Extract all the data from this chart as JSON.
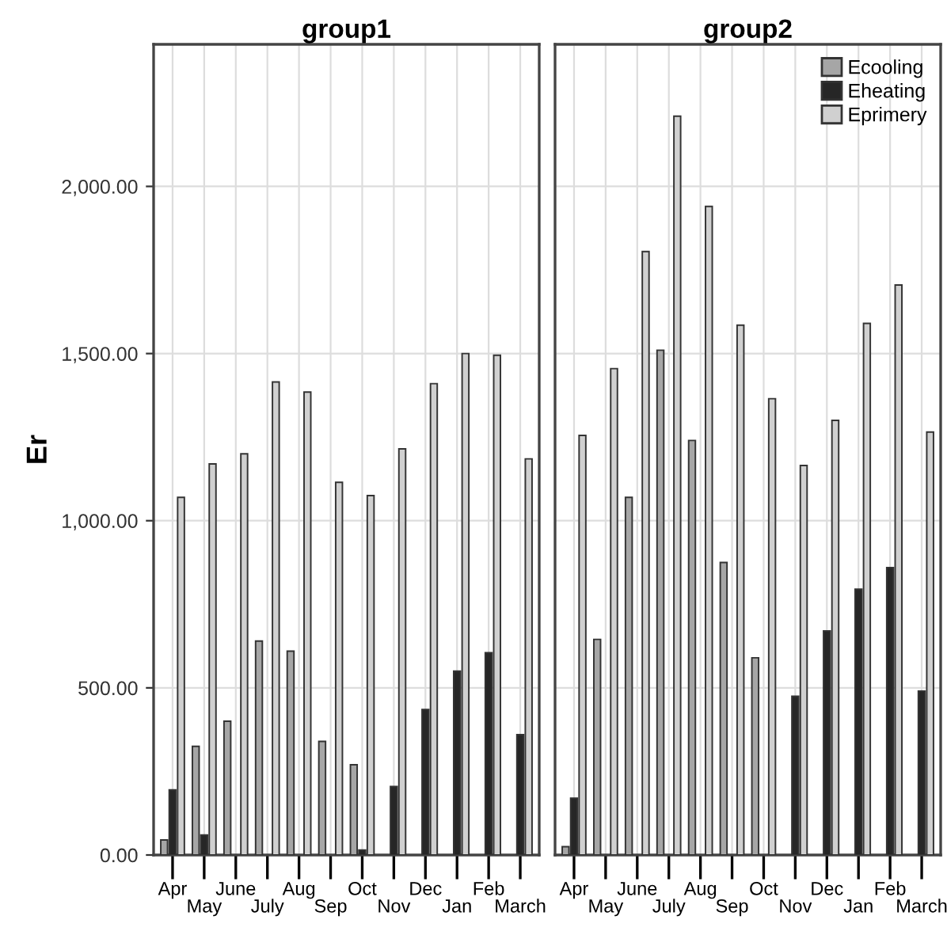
{
  "chart_data": [
    {
      "type": "bar",
      "title": "group1",
      "ylabel": "Er",
      "categories": [
        "Apr",
        "May",
        "June",
        "July",
        "Aug",
        "Sep",
        "Oct",
        "Nov",
        "Dec",
        "Jan",
        "Feb",
        "March"
      ],
      "series": [
        {
          "color": "#a6a6a6",
          "values": [
            45,
            325,
            400,
            640,
            610,
            340,
            270,
            null,
            null,
            null,
            null,
            null
          ]
        },
        {
          "color": "#262626",
          "values": [
            195,
            60,
            null,
            null,
            null,
            null,
            15,
            205,
            435,
            550,
            605,
            360
          ]
        },
        {
          "color": "#d0d0d0",
          "values": [
            1070,
            1170,
            1200,
            1415,
            1385,
            1115,
            1075,
            1215,
            1410,
            1500,
            1495,
            1185
          ]
        }
      ],
      "ylim": [
        0,
        2425
      ],
      "yticks": [
        {
          "value": 0,
          "label": "0.00"
        },
        {
          "value": 500,
          "label": "500.00"
        },
        {
          "value": 1000,
          "label": "1,000.00"
        },
        {
          "value": 1500,
          "label": "1,500.00"
        },
        {
          "value": 2000,
          "label": "2,000.00"
        }
      ],
      "grid": true
    },
    {
      "type": "bar",
      "title": "group2",
      "categories": [
        "Apr",
        "May",
        "June",
        "July",
        "Aug",
        "Sep",
        "Oct",
        "Nov",
        "Dec",
        "Jan",
        "Feb",
        "March"
      ],
      "series": [
        {
          "name": "Ecooling",
          "color": "#a6a6a6",
          "values": [
            25,
            645,
            1070,
            1510,
            1240,
            875,
            590,
            null,
            null,
            null,
            null,
            null
          ]
        },
        {
          "name": "Eheating",
          "color": "#262626",
          "values": [
            170,
            null,
            null,
            null,
            null,
            null,
            null,
            475,
            670,
            795,
            860,
            490
          ]
        },
        {
          "name": "Eprimery",
          "color": "#d0d0d0",
          "values": [
            1255,
            1455,
            1805,
            2210,
            1940,
            1585,
            1365,
            1165,
            1300,
            1590,
            1705,
            1265
          ]
        }
      ],
      "ylim": [
        0,
        2425
      ],
      "yticks": [
        0,
        500,
        1000,
        1500,
        2000
      ],
      "grid": true,
      "legend": "top right",
      "tick_labels": "x"
    }
  ]
}
